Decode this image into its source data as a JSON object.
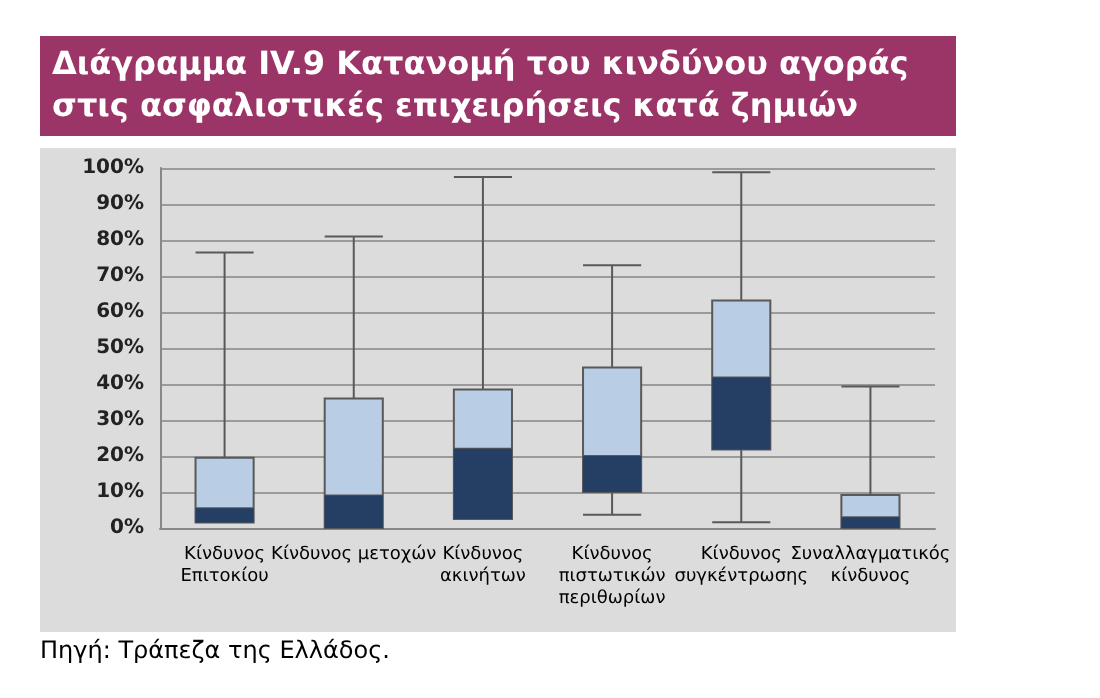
{
  "chart_data": {
    "type": "box",
    "title": "Διάγραμμα IV.9 Κατανομή του κινδύνου αγοράς στις ασφαλιστικές επιχειρήσεις κατά ζημιών",
    "categories": [
      "Κίνδυνος\nΕπιτοκίου",
      "Κίνδυνος μετοχών",
      "Κίνδυνος\nακινήτων",
      "Κίνδυνος\nπιστωτικών\nπεριθωρίων",
      "Κίνδυνος\nσυγκέντρωσης",
      "Συναλλαγματικός\nκίνδυνος"
    ],
    "series": [
      {
        "color": "#b9cde5",
        "colors": [
          "#243f63",
          "#243f63",
          "#243f63",
          "#243f63",
          "#243f63",
          "#243f63"
        ],
        "boxes": [
          {
            "low": 1.5,
            "q1": 1.5,
            "median": 5.5,
            "q3": 19.5,
            "high": 76.5
          },
          {
            "low": 0,
            "q1": 0,
            "median": 9,
            "q3": 36,
            "high": 81
          },
          {
            "low": 2.5,
            "q1": 2.5,
            "median": 22,
            "q3": 38.5,
            "high": 97.5
          },
          {
            "low": 3.7,
            "q1": 10,
            "median": 20,
            "q3": 44.6,
            "high": 73
          },
          {
            "low": 1.6,
            "q1": 21.8,
            "median": 41.8,
            "q3": 63.2,
            "high": 98.8
          },
          {
            "low": 0,
            "q1": 0,
            "median": 3,
            "q3": 9.2,
            "high": 39.3
          }
        ]
      }
    ],
    "ylim": [
      0,
      100
    ],
    "yticks": [
      {
        "value": 0,
        "label": "0%"
      },
      {
        "value": 10,
        "label": "10%"
      },
      {
        "value": 20,
        "label": "20%"
      },
      {
        "value": 30,
        "label": "30%"
      },
      {
        "value": 40,
        "label": "40%"
      },
      {
        "value": 50,
        "label": "50%"
      },
      {
        "value": 60,
        "label": "60%"
      },
      {
        "value": 70,
        "label": "70%"
      },
      {
        "value": 80,
        "label": "80%"
      },
      {
        "value": 90,
        "label": "90%"
      },
      {
        "value": 100,
        "label": "100%"
      }
    ],
    "grid": "y",
    "annotations": [
      "Πηγή: Τράπεζα της Ελλάδος."
    ]
  }
}
